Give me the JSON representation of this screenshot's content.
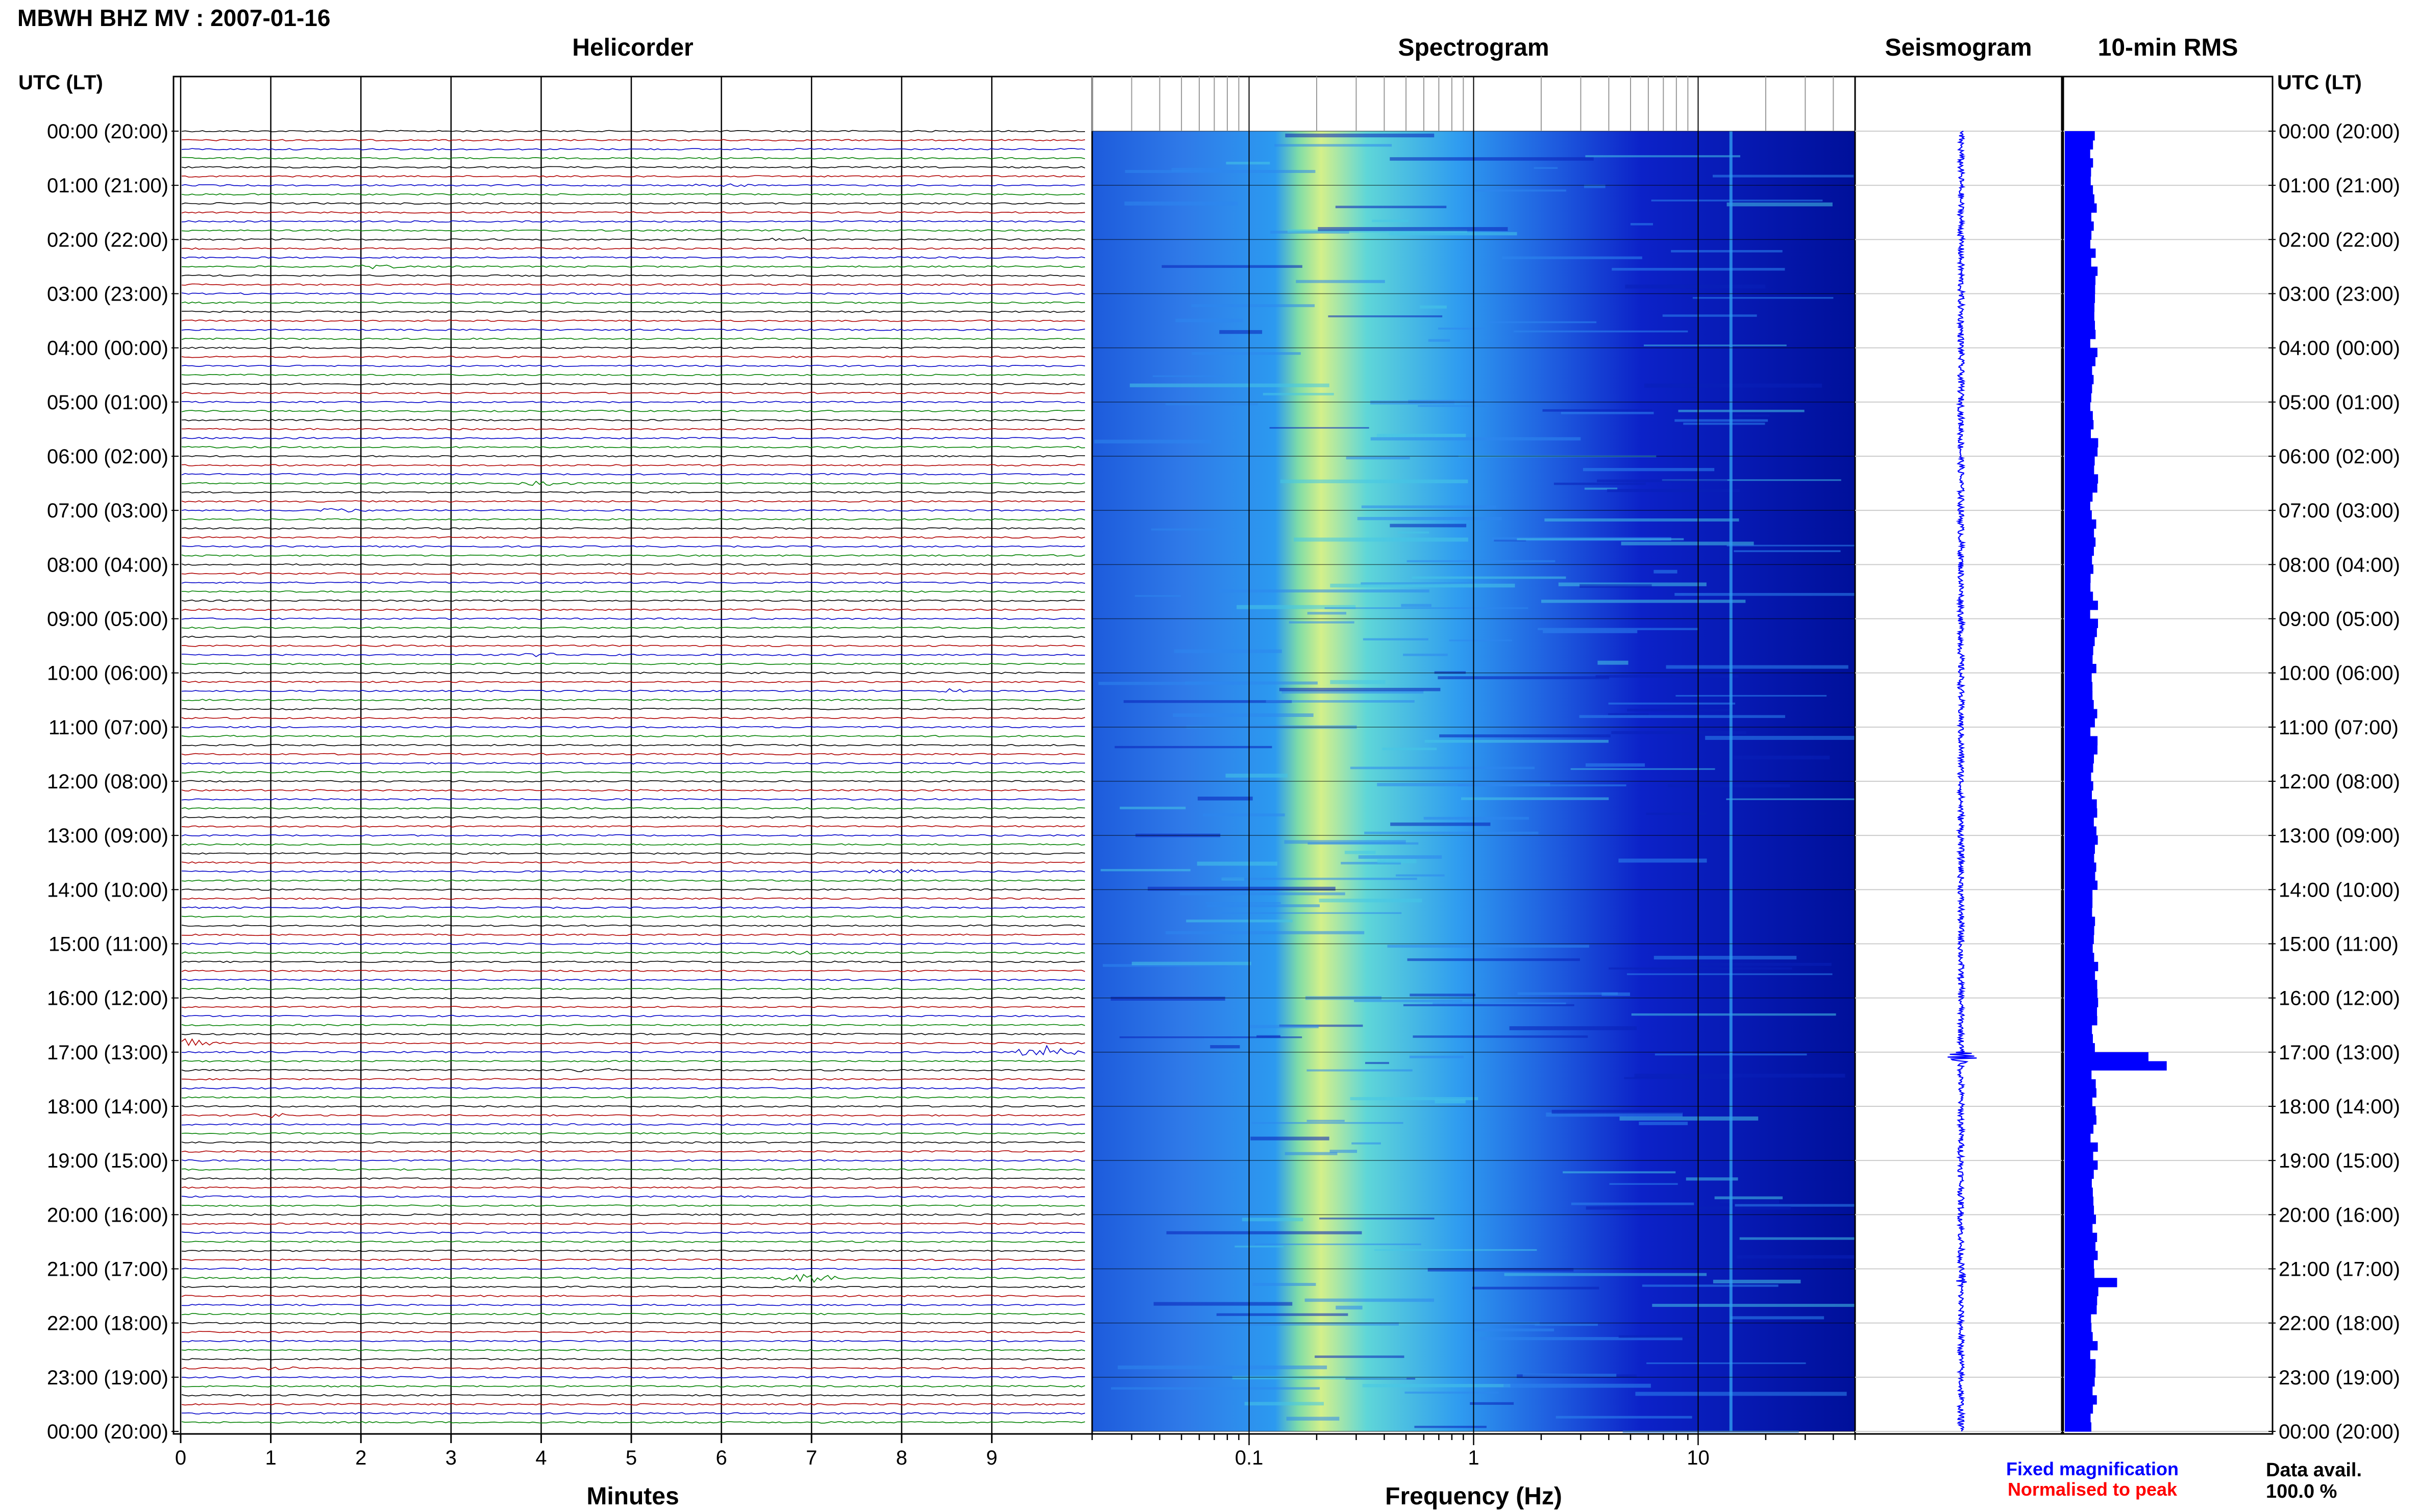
{
  "header": {
    "title": "MBWH BHZ MV : 2007-01-16"
  },
  "panels": {
    "helicorder": "Helicorder",
    "spectrogram": "Spectrogram",
    "seismogram": "Seismogram",
    "rms": "10-min RMS"
  },
  "axes": {
    "time_label_left": "UTC (LT)",
    "time_label_right": "UTC (LT)",
    "minutes_label": "Minutes",
    "frequency_label": "Frequency (Hz)"
  },
  "legend": {
    "fixed": "Fixed magnification",
    "normalised": "Normalised to peak",
    "fixed_color": "#0000ff",
    "normalised_color": "#ff0000"
  },
  "data_avail": {
    "label": "Data avail.",
    "value": "100.0 %"
  },
  "colors": {
    "trace_colors": [
      "#000000",
      "#b00000",
      "#0000c8",
      "#008000"
    ],
    "spectrogram_low": "#0a1fd0",
    "spectrogram_high": "#d8f060",
    "rms_bar": "#0000ff"
  },
  "chart_data": [
    {
      "type": "line",
      "name": "helicorder",
      "title": "Helicorder",
      "xlabel": "Minutes",
      "xlim": [
        0,
        10
      ],
      "xticks": [
        "0",
        "1",
        "2",
        "3",
        "4",
        "5",
        "6",
        "7",
        "8",
        "9"
      ],
      "rows": 144,
      "row_minutes": 10,
      "ylabels": [
        "00:00 (20:00)",
        "01:00 (21:00)",
        "02:00 (22:00)",
        "03:00 (23:00)",
        "04:00 (00:00)",
        "05:00 (01:00)",
        "06:00 (02:00)",
        "07:00 (03:00)",
        "08:00 (04:00)",
        "09:00 (05:00)",
        "10:00 (06:00)",
        "11:00 (07:00)",
        "12:00 (08:00)",
        "13:00 (09:00)",
        "14:00 (10:00)",
        "15:00 (11:00)",
        "16:00 (12:00)",
        "17:00 (13:00)",
        "18:00 (14:00)",
        "19:00 (15:00)",
        "20:00 (16:00)",
        "21:00 (17:00)",
        "22:00 (18:00)",
        "23:00 (19:00)",
        "00:00 (20:00)"
      ],
      "events": [
        {
          "row": 6,
          "minute": 6.0,
          "amp": 2
        },
        {
          "row": 12,
          "minute": 6.7,
          "amp": 2
        },
        {
          "row": 15,
          "minute": 2.2,
          "amp": 2
        },
        {
          "row": 39,
          "minute": 4.0,
          "amp": 2
        },
        {
          "row": 42,
          "minute": 1.7,
          "amp": 2
        },
        {
          "row": 58,
          "minute": 4.0,
          "amp": 2
        },
        {
          "row": 62,
          "minute": 8.5,
          "amp": 2
        },
        {
          "row": 82,
          "minute": 8.0,
          "amp": 3
        },
        {
          "row": 91,
          "minute": 7.0,
          "amp": 2
        },
        {
          "row": 101,
          "minute": 0.0,
          "amp": 6
        },
        {
          "row": 102,
          "minute": 9.6,
          "amp": 7
        },
        {
          "row": 104,
          "minute": 4.6,
          "amp": 2
        },
        {
          "row": 109,
          "minute": 1.0,
          "amp": 2
        },
        {
          "row": 127,
          "minute": 7.0,
          "amp": 5
        },
        {
          "row": 137,
          "minute": 1.0,
          "amp": 2
        }
      ]
    },
    {
      "type": "heatmap",
      "name": "spectrogram",
      "title": "Spectrogram",
      "xlabel": "Frequency (Hz)",
      "xscale": "log",
      "xlim": [
        0.02,
        50
      ],
      "xticks": [
        0.1,
        1,
        10
      ],
      "xticklabels": [
        "0.1",
        "1",
        "10"
      ],
      "ylim_hours": [
        0,
        24
      ],
      "peak_band_hz": [
        0.2,
        0.35
      ],
      "line_hz": 14
    },
    {
      "type": "line",
      "name": "seismogram",
      "title": "Seismogram",
      "events": [
        {
          "hour": 17.1,
          "amp": 3
        },
        {
          "hour": 21.2,
          "amp": 1
        }
      ]
    },
    {
      "type": "bar",
      "name": "10-min RMS",
      "title": "10-min RMS",
      "orientation": "horizontal",
      "bins_per_hour": 6,
      "hours": 24,
      "baseline": 1.0,
      "peaks": [
        {
          "hour": 17.0,
          "value": 3.2
        },
        {
          "hour": 17.17,
          "value": 3.9
        },
        {
          "hour": 21.17,
          "value": 2.0
        }
      ]
    }
  ]
}
